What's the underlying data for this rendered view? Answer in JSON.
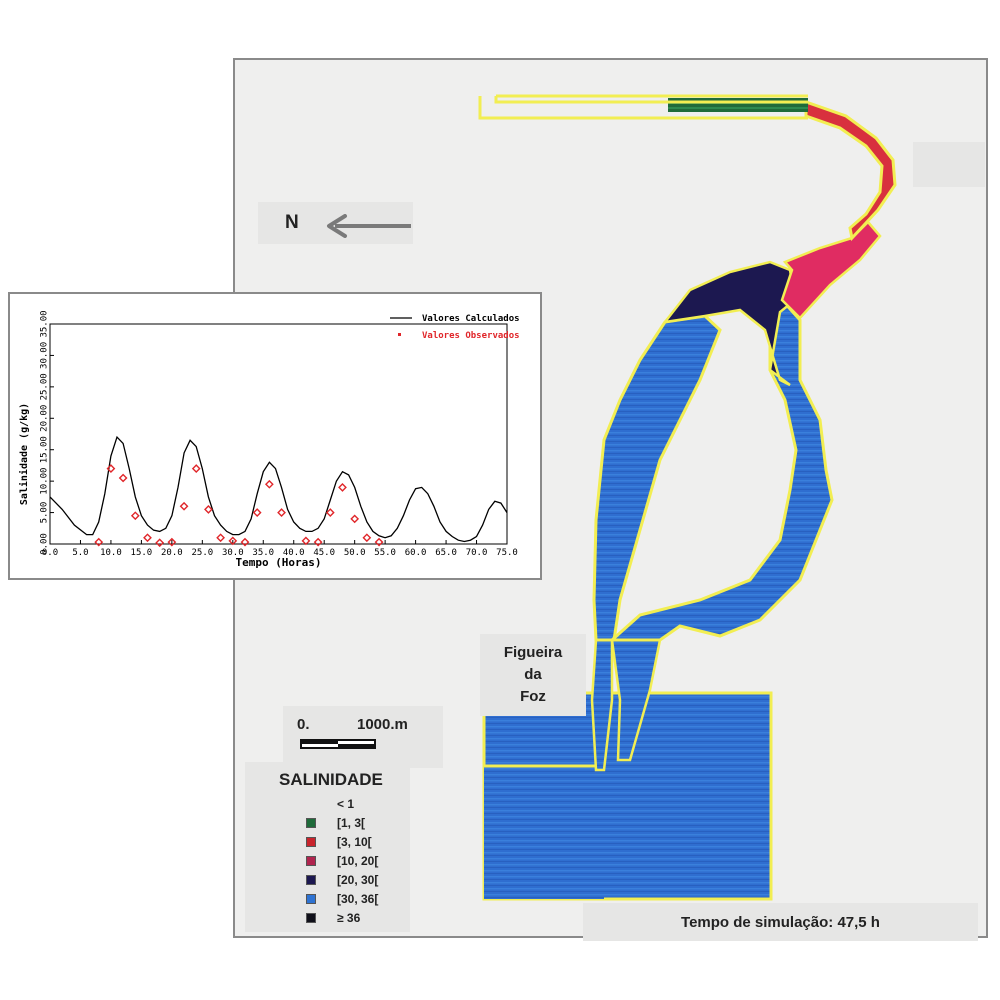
{
  "map": {
    "north_label": "N",
    "place_label": "Figueira\nda\nFoz",
    "scale": {
      "start": "0.",
      "end": "1000.m"
    },
    "simulation_time": "Tempo de simulação: 47,5 h"
  },
  "legend": {
    "title": "SALINIDADE",
    "items": [
      {
        "label": "< 1",
        "color": ""
      },
      {
        "label": "[1, 3[",
        "color": "#1f6b3a"
      },
      {
        "label": "[3, 10[",
        "color": "#c8242c"
      },
      {
        "label": "[10, 20[",
        "color": "#b0244e"
      },
      {
        "label": "[20, 30[",
        "color": "#1c1850"
      },
      {
        "label": "[30, 36[",
        "color": "#2f73d2"
      },
      {
        "label": "≥ 36",
        "color": "#10101a"
      }
    ]
  },
  "colors": {
    "ocean_blue": "#2f6ed0",
    "estuary_blue": "#3478d6",
    "coast_yellow": "#f2ee52",
    "low_green": "#1f6b3a",
    "red_zone": "#d8303e",
    "pink_zone": "#e02c62",
    "dark_zone": "#1c1850",
    "arrow_gray": "#7a7a7a"
  },
  "chart_data": {
    "type": "line",
    "xlabel": "Tempo (Horas)",
    "ylabel": "Salinidade (g/kg)",
    "xlim": [
      0,
      75
    ],
    "ylim": [
      0,
      35
    ],
    "xticks": [
      "0.0",
      "5.0",
      "10.0",
      "15.0",
      "20.0",
      "25.0",
      "30.0",
      "35.0",
      "40.0",
      "45.0",
      "50.0",
      "55.0",
      "60.0",
      "65.0",
      "70.0",
      "75.0"
    ],
    "yticks": [
      "0.00",
      "5.00",
      "10.00",
      "15.00",
      "20.00",
      "25.00",
      "30.00",
      "35.00"
    ],
    "series": [
      {
        "name": "Valores Calculados",
        "kind": "line",
        "color": "#000000",
        "x": [
          0,
          2,
          4,
          6,
          7,
          8,
          9,
          10,
          11,
          12,
          13,
          14,
          15,
          16,
          17,
          18,
          19,
          20,
          21,
          22,
          23,
          24,
          25,
          26,
          27,
          28,
          29,
          30,
          31,
          32,
          33,
          34,
          35,
          36,
          37,
          38,
          39,
          40,
          41,
          42,
          43,
          44,
          45,
          46,
          47,
          48,
          49,
          50,
          51,
          52,
          53,
          54,
          55,
          56,
          57,
          58,
          59,
          60,
          61,
          62,
          63,
          64,
          65,
          66,
          67,
          68,
          69,
          70,
          71,
          72,
          73,
          74,
          75
        ],
        "y": [
          7.5,
          5.5,
          3.0,
          1.5,
          1.5,
          3.5,
          8.0,
          14.0,
          17.0,
          16.0,
          12.0,
          7.5,
          4.5,
          3.0,
          2.2,
          2.0,
          2.5,
          4.5,
          9.0,
          14.5,
          16.5,
          15.5,
          12.0,
          7.5,
          4.5,
          3.0,
          2.0,
          1.5,
          1.5,
          2.0,
          4.0,
          8.0,
          11.5,
          13.0,
          12.0,
          9.0,
          5.5,
          3.5,
          2.5,
          2.0,
          2.0,
          2.5,
          4.0,
          7.0,
          10.0,
          11.5,
          11.0,
          9.0,
          6.0,
          3.5,
          2.0,
          1.3,
          1.0,
          1.3,
          2.5,
          4.5,
          7.0,
          8.8,
          9.0,
          8.0,
          6.0,
          3.5,
          2.0,
          1.2,
          0.6,
          0.4,
          0.6,
          1.2,
          3.0,
          5.5,
          6.8,
          6.5,
          5.0
        ]
      },
      {
        "name": "Valores Observados",
        "kind": "scatter",
        "color": "#e0262a",
        "x": [
          8,
          10,
          12,
          14,
          16,
          18,
          20,
          22,
          24,
          26,
          28,
          30,
          32,
          34,
          36,
          38,
          42,
          44,
          46,
          48,
          50,
          52,
          54
        ],
        "y": [
          0.3,
          12.0,
          10.5,
          4.5,
          1.0,
          0.2,
          0.3,
          6.0,
          12.0,
          5.5,
          1.0,
          0.5,
          0.3,
          5.0,
          9.5,
          5.0,
          0.5,
          0.3,
          5.0,
          9.0,
          4.0,
          1.0,
          0.3
        ]
      }
    ]
  }
}
